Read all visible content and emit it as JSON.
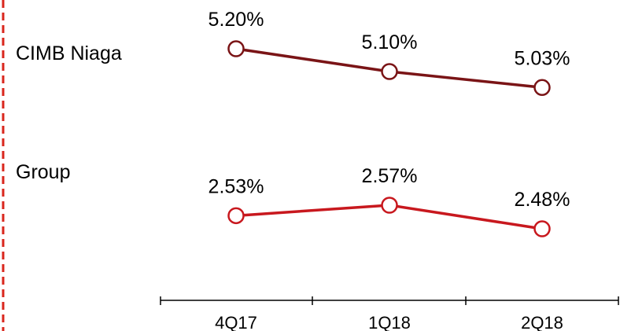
{
  "chart_data": {
    "type": "line",
    "categories": [
      "4Q17",
      "1Q18",
      "2Q18"
    ],
    "series": [
      {
        "name": "CIMB Niaga",
        "values": [
          5.2,
          5.1,
          5.03
        ],
        "labels": [
          "5.20%",
          "5.10%",
          "5.03%"
        ],
        "color": "#7a1416"
      },
      {
        "name": "Group",
        "values": [
          2.53,
          2.57,
          2.48
        ],
        "labels": [
          "2.53%",
          "2.57%",
          "2.48%"
        ],
        "color": "#c8181e"
      }
    ],
    "grid": false,
    "legend": "left-inline",
    "accent_border_color": "#d9261c"
  }
}
